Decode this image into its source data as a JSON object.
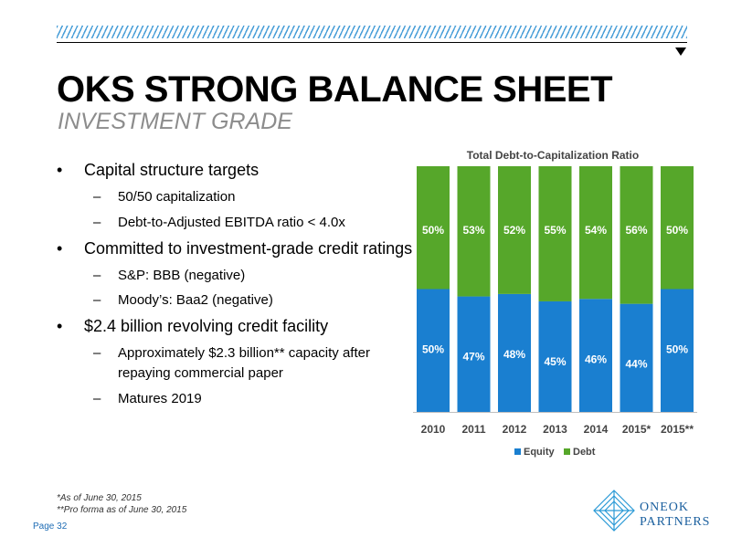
{
  "header": {
    "title": "OKS STRONG BALANCE SHEET",
    "subtitle": "INVESTMENT GRADE"
  },
  "bullets": [
    {
      "text": "Capital structure targets",
      "subs": [
        "50/50 capitalization",
        "Debt-to-Adjusted EBITDA ratio < 4.0x"
      ]
    },
    {
      "text": "Committed to investment-grade credit ratings",
      "subs": [
        "S&P: BBB (negative)",
        "Moody’s: Baa2 (negative)"
      ]
    },
    {
      "text": "$2.4 billion revolving credit facility",
      "subs": [
        "Approximately $2.3 billion** capacity after",
        "repaying commercial paper",
        "Matures 2019"
      ]
    }
  ],
  "bullet_glyph": "•",
  "dash_glyph": "–",
  "footnotes": [
    "*As of June 30, 2015",
    "**Pro forma as of June 30, 2015"
  ],
  "page_label": "Page 32",
  "logo": {
    "line1": "ONEOK",
    "line2": "PARTNERS"
  },
  "colors": {
    "equity": "#1a7fd0",
    "debt": "#56a72a",
    "accent_blue": "#1f6db5",
    "stripe": "#4a9fd8"
  },
  "chart_data": {
    "type": "bar",
    "stacked": true,
    "title": "Total Debt-to-Capitalization Ratio",
    "categories": [
      "2010",
      "2011",
      "2012",
      "2013",
      "2014",
      "2015*",
      "2015**"
    ],
    "series": [
      {
        "name": "Equity",
        "values": [
          50,
          47,
          48,
          45,
          46,
          44,
          50
        ],
        "labels": [
          "50%",
          "47%",
          "48%",
          "45%",
          "46%",
          "44%",
          "50%"
        ]
      },
      {
        "name": "Debt",
        "values": [
          50,
          53,
          52,
          55,
          54,
          56,
          50
        ],
        "labels": [
          "50%",
          "53%",
          "52%",
          "55%",
          "54%",
          "56%",
          "50%"
        ]
      }
    ],
    "ylim": [
      0,
      100
    ],
    "legend_position": "bottom",
    "grid": false
  }
}
